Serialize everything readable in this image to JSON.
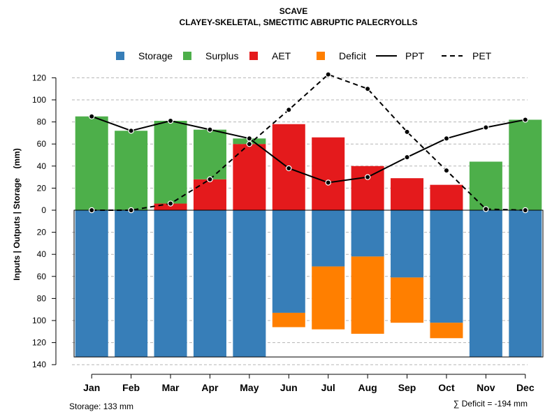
{
  "chart_data": {
    "type": "bar",
    "title": "SCAVE",
    "subtitle": "CLAYEY-SKELETAL, SMECTITIC ABRUPTIC PALECRYOLLS",
    "ylabel": "Inputs | Outputs | Storage    (mm)",
    "ylim": [
      -140,
      125
    ],
    "yticks": [
      120,
      100,
      80,
      60,
      40,
      20,
      0,
      -20,
      -40,
      -60,
      -80,
      -100,
      -120,
      -140
    ],
    "ytick_labels": [
      "120",
      "100",
      "80",
      "60",
      "40",
      "20",
      "0",
      "20",
      "40",
      "60",
      "80",
      "100",
      "120",
      "140"
    ],
    "grid": true,
    "legend_position": "top",
    "categories": [
      "Jan",
      "Feb",
      "Mar",
      "Apr",
      "May",
      "Jun",
      "Jul",
      "Aug",
      "Sep",
      "Oct",
      "Nov",
      "Dec"
    ],
    "series": [
      {
        "name": "Storage",
        "color": "#377eb8",
        "values": [
          133,
          133,
          133,
          133,
          133,
          93,
          51,
          42,
          61,
          102,
          133,
          133
        ]
      },
      {
        "name": "Surplus",
        "color": "#4daf4a",
        "values": [
          85,
          72,
          75,
          45,
          5,
          0,
          0,
          0,
          0,
          0,
          44,
          82
        ]
      },
      {
        "name": "AET",
        "color": "#e41a1c",
        "values": [
          0,
          0,
          6,
          28,
          60,
          78,
          66,
          40,
          29,
          23,
          0,
          0
        ]
      },
      {
        "name": "Deficit",
        "color": "#ff7f00",
        "values": [
          0,
          0,
          0,
          0,
          0,
          13,
          57,
          70,
          41,
          14,
          0,
          0
        ]
      },
      {
        "name": "PPT",
        "color": "#000000",
        "style": "solid",
        "values": [
          85,
          72,
          81,
          73,
          65,
          38,
          25,
          30,
          48,
          65,
          75,
          82
        ]
      },
      {
        "name": "PET",
        "color": "#000000",
        "style": "dashed",
        "values": [
          0,
          0,
          6,
          28,
          60,
          91,
          123,
          110,
          71,
          36,
          1,
          0
        ]
      }
    ],
    "annotations": {
      "storage_note": "Storage: 133 mm",
      "deficit_note": "∑ Deficit = -194 mm"
    }
  }
}
